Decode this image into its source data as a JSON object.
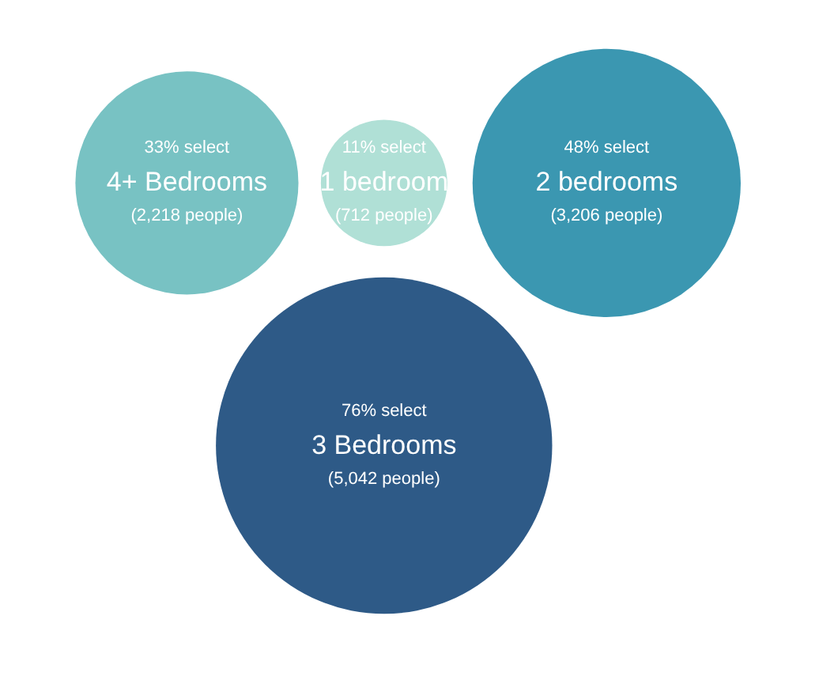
{
  "chart_data": {
    "type": "other",
    "categories": [
      "4+ Bedrooms",
      "1 bedroom",
      "2 bedrooms",
      "3 Bedrooms"
    ],
    "values": [
      2218,
      712,
      3206,
      5042
    ],
    "value_labels": [
      "(2,218 people)",
      "(712 people)",
      "(3,206 people)",
      "(5,042 people)"
    ],
    "annotations": [
      "33% select",
      "11% select",
      "48% select",
      "76% select"
    ],
    "colors": [
      "#78c2c3",
      "#b0e0d6",
      "#3b97b1",
      "#2e5a87"
    ]
  }
}
